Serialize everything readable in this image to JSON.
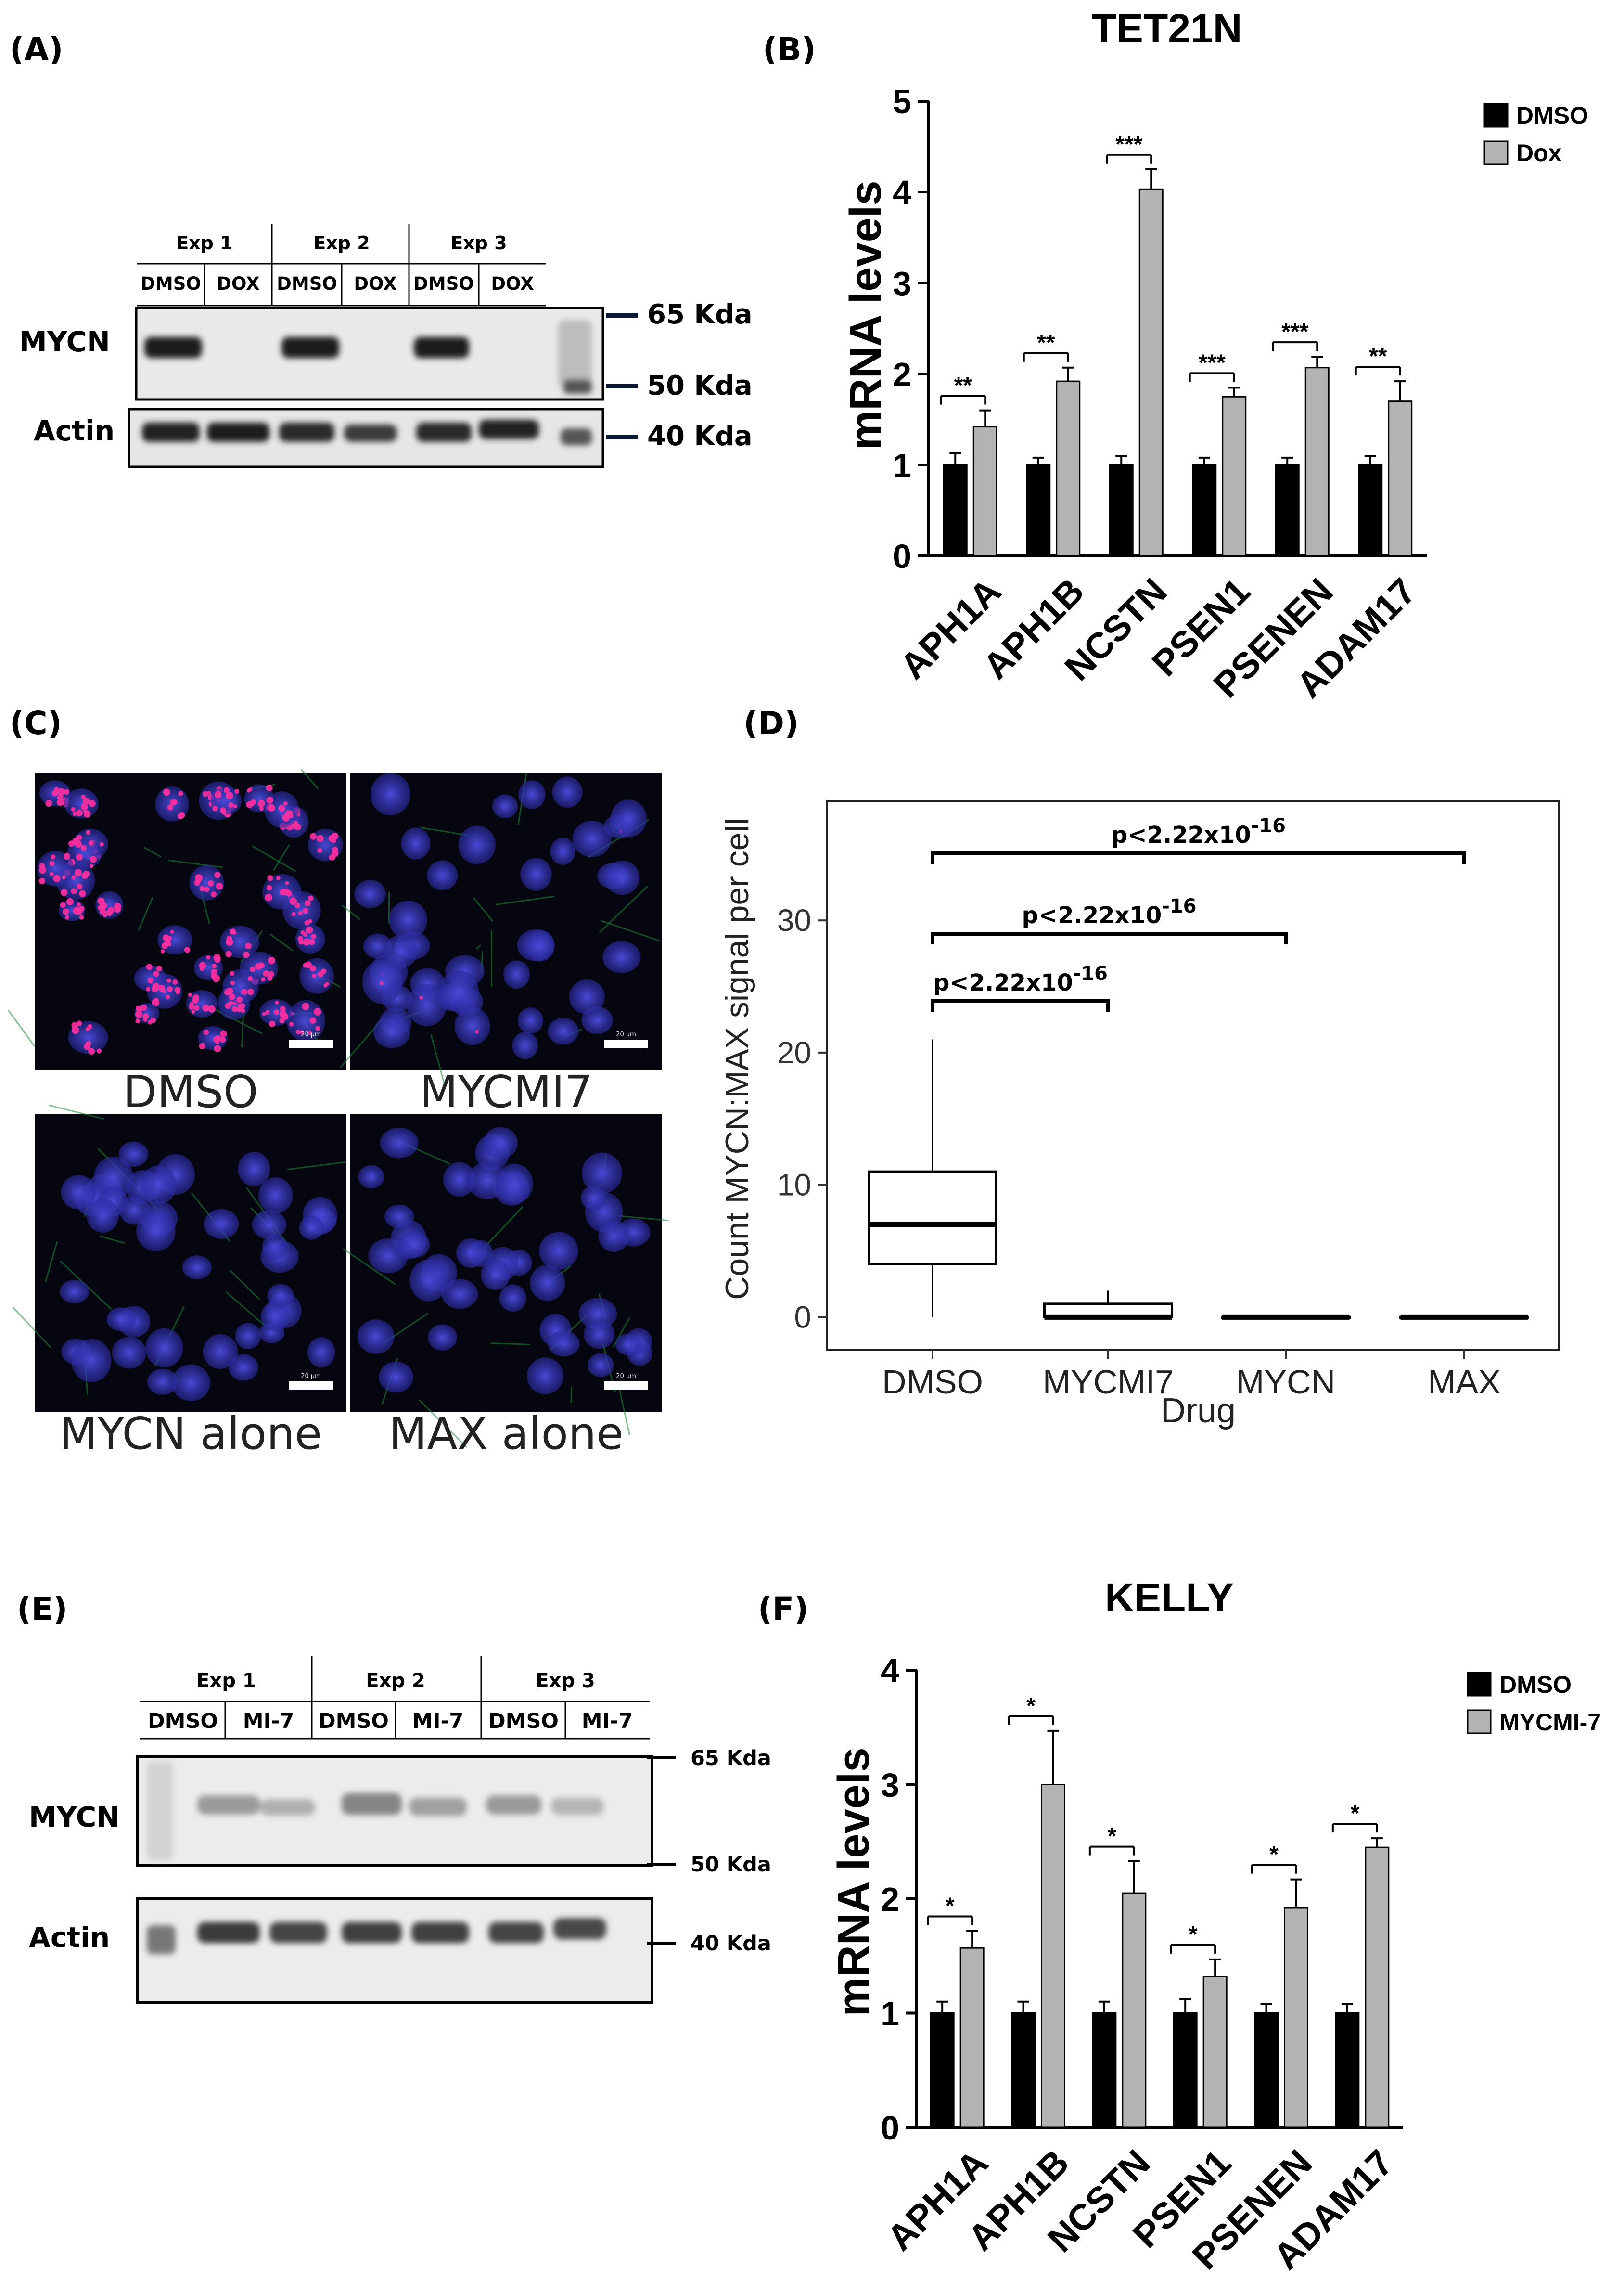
{
  "panel_labels": [
    "(A)",
    "(B)",
    "(C)",
    "(D)",
    "(E)",
    "(F)"
  ],
  "blot_a": {
    "experiments": [
      "Exp 1",
      "Exp 2",
      "Exp 3"
    ],
    "lanes": [
      "DMSO",
      "DOX",
      "DMSO",
      "DOX",
      "DMSO",
      "DOX"
    ],
    "rows": [
      "MYCN",
      "Actin"
    ],
    "markers": [
      "65 Kda",
      "50 Kda",
      "40 Kda"
    ]
  },
  "blot_e": {
    "experiments": [
      "Exp 1",
      "Exp 2",
      "Exp 3"
    ],
    "lanes": [
      "DMSO",
      "MI-7",
      "DMSO",
      "MI-7",
      "DMSO",
      "MI-7"
    ],
    "rows": [
      "MYCN",
      "Actin"
    ],
    "markers": [
      "65 Kda",
      "50 Kda",
      "40 Kda"
    ]
  },
  "microscopy_c": {
    "captions": [
      "DMSO",
      "MYCMI7",
      "MYCN alone",
      "MAX alone"
    ],
    "scale_bar": "20 µm"
  },
  "chart_data": [
    {
      "type": "bar",
      "panel": "B",
      "title": "TET21N",
      "ylabel": "mRNA levels",
      "ylim": [
        0,
        5
      ],
      "yticks": [
        "0",
        "1",
        "2",
        "3",
        "4",
        "5"
      ],
      "categories": [
        "APH1A",
        "APH1B",
        "NCSTN",
        "PSEN1",
        "PSENEN",
        "ADAM17"
      ],
      "series": [
        {
          "name": "DMSO",
          "color": "#000000",
          "values": [
            1.0,
            1.0,
            1.0,
            1.0,
            1.0,
            1.0
          ],
          "errors": [
            0.13,
            0.08,
            0.1,
            0.08,
            0.08,
            0.1
          ]
        },
        {
          "name": "Dox",
          "color": "#b3b3b3",
          "values": [
            1.42,
            1.92,
            4.03,
            1.75,
            2.07,
            1.7
          ],
          "errors": [
            0.18,
            0.15,
            0.22,
            0.1,
            0.12,
            0.22
          ]
        }
      ],
      "significance": [
        "**",
        "**",
        "***",
        "***",
        "***",
        "**"
      ],
      "legend_position": "top-right"
    },
    {
      "type": "box",
      "panel": "D",
      "ylabel": "Count MYCN:MAX signal per cell",
      "xlabel": "Drug",
      "yticks": [
        "0",
        "10",
        "20",
        "30"
      ],
      "ylim": [
        -2.5,
        39
      ],
      "categories": [
        "DMSO",
        "MYCMI7",
        "MYCN",
        "MAX"
      ],
      "boxes": [
        {
          "min": 0,
          "q1": 4,
          "median": 7,
          "q3": 11,
          "max": 21
        },
        {
          "min": 0,
          "q1": 0,
          "median": 0,
          "q3": 1,
          "max": 2
        },
        {
          "min": 0,
          "q1": 0,
          "median": 0,
          "q3": 0,
          "max": 0
        },
        {
          "min": 0,
          "q1": 0,
          "median": 0,
          "q3": 0,
          "max": 0
        }
      ],
      "comparisons": [
        {
          "from": "DMSO",
          "to": "MYCMI7",
          "label_base": "p<2.22x10",
          "label_exp": "-16"
        },
        {
          "from": "DMSO",
          "to": "MYCN",
          "label_base": "p<2.22x10",
          "label_exp": "-16"
        },
        {
          "from": "DMSO",
          "to": "MAX",
          "label_base": "p<2.22x10",
          "label_exp": "-16"
        }
      ]
    },
    {
      "type": "bar",
      "panel": "F",
      "title": "KELLY",
      "ylabel": "mRNA levels",
      "ylim": [
        0,
        4
      ],
      "yticks": [
        "0",
        "1",
        "2",
        "3",
        "4"
      ],
      "categories": [
        "APH1A",
        "APH1B",
        "NCSTN",
        "PSEN1",
        "PSENEN",
        "ADAM17"
      ],
      "series": [
        {
          "name": "DMSO",
          "color": "#000000",
          "values": [
            1.0,
            1.0,
            1.0,
            1.0,
            1.0,
            1.0
          ],
          "errors": [
            0.1,
            0.1,
            0.1,
            0.12,
            0.08,
            0.08
          ]
        },
        {
          "name": "MYCMI-7",
          "color": "#b3b3b3",
          "values": [
            1.57,
            3.0,
            2.05,
            1.32,
            1.92,
            2.45
          ],
          "errors": [
            0.15,
            0.47,
            0.28,
            0.15,
            0.25,
            0.08
          ]
        }
      ],
      "significance": [
        "*",
        "*",
        "*",
        "*",
        "*",
        "*"
      ],
      "legend_position": "top-right"
    }
  ]
}
